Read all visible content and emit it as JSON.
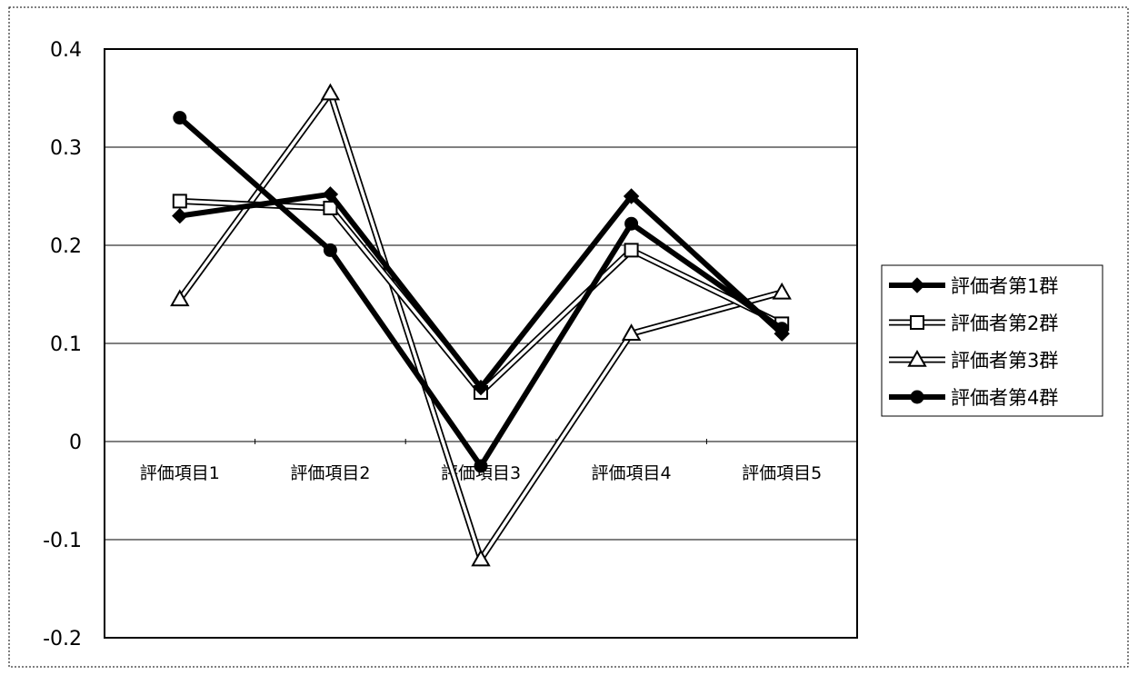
{
  "chart_data": {
    "type": "line",
    "categories": [
      "評価項目1",
      "評価項目2",
      "評価項目3",
      "評価項目4",
      "評価項目5"
    ],
    "series": [
      {
        "name": "評価者第1群",
        "values": [
          0.23,
          0.252,
          0.055,
          0.25,
          0.11
        ],
        "marker": "diamond",
        "style": "thick-black"
      },
      {
        "name": "評価者第2群",
        "values": [
          0.245,
          0.238,
          0.05,
          0.195,
          0.12
        ],
        "marker": "square",
        "style": "hollow"
      },
      {
        "name": "評価者第3群",
        "values": [
          0.145,
          0.355,
          -0.12,
          0.11,
          0.152
        ],
        "marker": "triangle",
        "style": "hollow"
      },
      {
        "name": "評価者第4群",
        "values": [
          0.33,
          0.195,
          -0.025,
          0.222,
          0.115
        ],
        "marker": "circle",
        "style": "thick-black"
      }
    ],
    "ylim": [
      -0.2,
      0.4
    ],
    "yticks": [
      "0.4",
      "0.3",
      "0.2",
      "0.1",
      "0",
      "-0.1",
      "-0.2"
    ],
    "ytick_values": [
      0.4,
      0.3,
      0.2,
      0.1,
      0,
      -0.1,
      -0.2
    ],
    "grid": true,
    "legend_position": "right"
  }
}
